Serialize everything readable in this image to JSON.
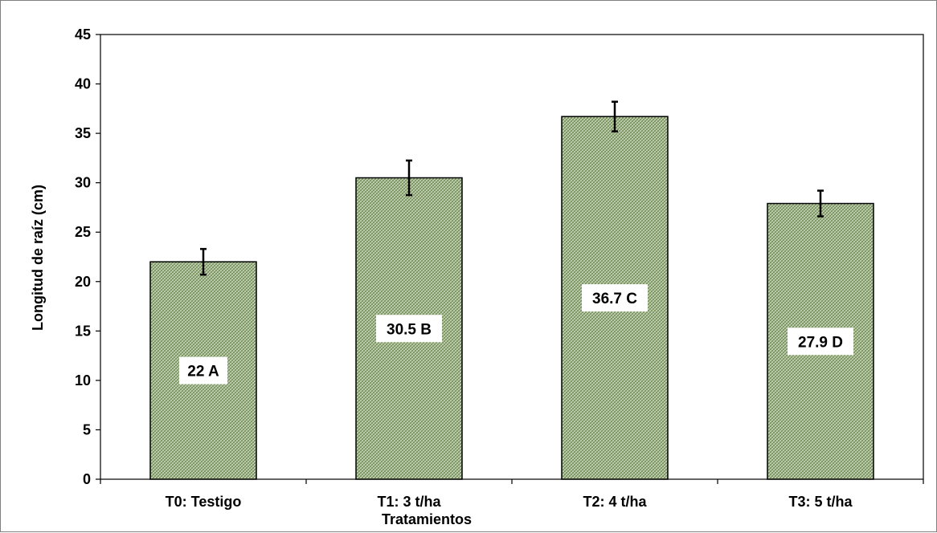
{
  "chart_data": {
    "type": "bar",
    "categories": [
      "T0: Testigo",
      "T1: 3 t/ha",
      "T2: 4 t/ha",
      "T3: 5 t/ha"
    ],
    "values": [
      22,
      30.5,
      36.7,
      27.9
    ],
    "error": [
      1.3,
      1.75,
      1.5,
      1.3
    ],
    "data_labels": [
      "22 A",
      "30.5 B",
      "36.7 C",
      "27.9 D"
    ],
    "title": "",
    "xlabel": "Tratamientos",
    "ylabel": "Longitud de raíz (cm)",
    "ylim": [
      0,
      45
    ],
    "yticks": [
      0,
      5,
      10,
      15,
      20,
      25,
      30,
      35,
      40,
      45
    ],
    "grid": false,
    "legend": "none",
    "colors": {
      "bar_fill": "#c9d6b8",
      "bar_pattern": "#6f8a55",
      "bar_stroke": "#000000",
      "error_bar": "#000000",
      "label_box": "#ffffff"
    }
  }
}
